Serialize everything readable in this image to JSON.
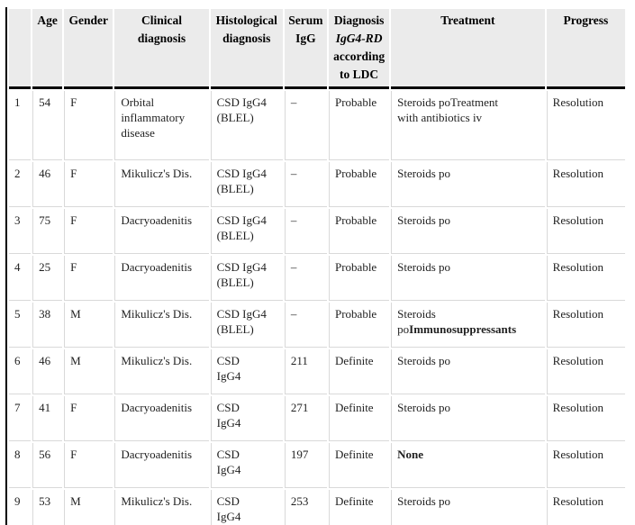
{
  "colors": {
    "header_background": "#ebebeb",
    "grid_line": "#d9d9d9",
    "rule_black": "#000000",
    "text": "#1f1f1f"
  },
  "table": {
    "columns": [
      {
        "key": "num",
        "label": ""
      },
      {
        "key": "age",
        "label": "Age"
      },
      {
        "key": "gender",
        "label": "Gender"
      },
      {
        "key": "clinical",
        "label": "Clinical\ndiagnosis"
      },
      {
        "key": "histological",
        "label": "Histological\ndiagnosis"
      },
      {
        "key": "serum",
        "label": "Serum\nIgG"
      },
      {
        "key": "diagnosis",
        "label": "Diagnosis",
        "label_italic": "IgG4-RD",
        "label_after": "according\nto LDC"
      },
      {
        "key": "treatment",
        "label": "Treatment"
      },
      {
        "key": "progress",
        "label": "Progress"
      }
    ],
    "rows": [
      {
        "num": "1",
        "age": "54",
        "gender": "F",
        "clinical": "Orbital\ninflammatory\ndisease",
        "histological": "CSD IgG4\n(BLEL)",
        "serum": "–",
        "diagnosis": "Probable",
        "treatment": [
          {
            "text": "Steroids poTreatment\nwith antibiotics iv",
            "bold": false
          }
        ],
        "progress": "Resolution"
      },
      {
        "num": "2",
        "age": "46",
        "gender": "F",
        "clinical": "Mikulicz's Dis.",
        "histological": "CSD IgG4\n(BLEL)",
        "serum": "–",
        "diagnosis": "Probable",
        "treatment": [
          {
            "text": "Steroids po",
            "bold": false
          }
        ],
        "progress": "Resolution"
      },
      {
        "num": "3",
        "age": "75",
        "gender": "F",
        "clinical": "Dacryoadenitis",
        "histological": "CSD IgG4\n(BLEL)",
        "serum": "–",
        "diagnosis": "Probable",
        "treatment": [
          {
            "text": "Steroids po",
            "bold": false
          }
        ],
        "progress": "Resolution"
      },
      {
        "num": "4",
        "age": "25",
        "gender": "F",
        "clinical": "Dacryoadenitis",
        "histological": "CSD IgG4\n(BLEL)",
        "serum": "–",
        "diagnosis": "Probable",
        "treatment": [
          {
            "text": "Steroids po",
            "bold": false
          }
        ],
        "progress": "Resolution"
      },
      {
        "num": "5",
        "age": "38",
        "gender": "M",
        "clinical": "Mikulicz's Dis.",
        "histological": "CSD IgG4\n(BLEL)",
        "serum": "–",
        "diagnosis": "Probable",
        "treatment": [
          {
            "text": "Steroids po",
            "bold": false
          },
          {
            "text": "Immunosuppressants",
            "bold": true
          }
        ],
        "progress": "Resolution"
      },
      {
        "num": "6",
        "age": "46",
        "gender": "M",
        "clinical": "Mikulicz's Dis.",
        "histological": "CSD\nIgG4",
        "serum": "211",
        "diagnosis": "Definite",
        "treatment": [
          {
            "text": "Steroids po",
            "bold": false
          }
        ],
        "progress": "Resolution"
      },
      {
        "num": "7",
        "age": "41",
        "gender": "F",
        "clinical": "Dacryoadenitis",
        "histological": "CSD\nIgG4",
        "serum": "271",
        "diagnosis": "Definite",
        "treatment": [
          {
            "text": "Steroids po",
            "bold": false
          }
        ],
        "progress": "Resolution"
      },
      {
        "num": "8",
        "age": "56",
        "gender": "F",
        "clinical": "Dacryoadenitis",
        "histological": "CSD\nIgG4",
        "serum": "197",
        "diagnosis": "Definite",
        "treatment": [
          {
            "text": "None",
            "bold": true
          }
        ],
        "progress": "Resolution"
      },
      {
        "num": "9",
        "age": "53",
        "gender": "M",
        "clinical": "Mikulicz's Dis.",
        "histological": "CSD\nIgG4",
        "serum": "253",
        "diagnosis": "Definite",
        "treatment": [
          {
            "text": "Steroids po",
            "bold": false
          }
        ],
        "progress": "Resolution"
      }
    ]
  }
}
